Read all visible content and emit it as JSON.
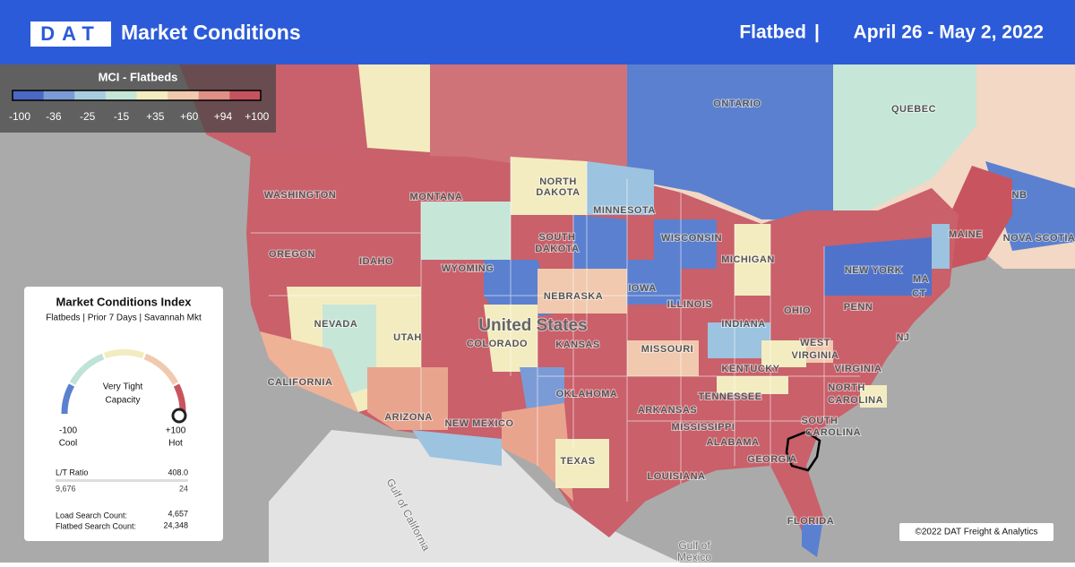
{
  "header": {
    "logo": "DAT",
    "title": "Market Conditions",
    "product": "Flatbed",
    "separator": "|",
    "dates": "April 26 - May 2, 2022"
  },
  "legend": {
    "title": "MCI - Flatbeds",
    "ticks": [
      "-100",
      "-36",
      "-25",
      "-15",
      "+35",
      "+60",
      "+94",
      "+100"
    ],
    "colors": [
      "#4a68c4",
      "#7b9bd6",
      "#a9cde0",
      "#c6e6d8",
      "#f3ecc0",
      "#f1c9ae",
      "#df8f86",
      "#c4535e"
    ]
  },
  "panel": {
    "title": "Market Conditions Index",
    "subtitle": "Flatbeds | Prior 7 Days | Savannah Mkt",
    "gauge_label": [
      "Very Tight",
      "Capacity"
    ],
    "min": "-100",
    "min_label": "Cool",
    "max": "+100",
    "max_label": "Hot",
    "ratio_label": "L/T Ratio",
    "ratio": "408.0",
    "loads": "9,676",
    "trucks": "24",
    "load_search_label": "Load Search Count:",
    "load_search": "4,657",
    "flatbed_search_label": "Flatbed Search Count:",
    "flatbed_search": "24,348"
  },
  "map": {
    "labels": [
      "ONTARIO",
      "QUEBEC",
      "WASHINGTON",
      "MONTANA",
      "NORTH",
      "DAKOTA",
      "MINNESOTA",
      "SOUTH",
      "DAKOTA",
      "WISCONSIN",
      "MICHIGAN",
      "NEW YORK",
      "MAINE",
      "NB",
      "NOVA SCOTIA",
      "OREGON",
      "IDAHO",
      "WYOMING",
      "NEBRASKA",
      "IOWA",
      "ILLINOIS",
      "INDIANA",
      "OHIO",
      "PENN",
      "NJ",
      "CT",
      "MA",
      "NEVADA",
      "UTAH",
      "COLORADO",
      "KANSAS",
      "MISSOURI",
      "KENTUCKY",
      "WEST",
      "VIRGINIA",
      "VIRGINIA",
      "CALIFORNIA",
      "ARIZONA",
      "NEW MEXICO",
      "OKLAHOMA",
      "TENNESSEE",
      "NORTH",
      "CAROLINA",
      "SOUTH",
      "CAROLINA",
      "ARKANSAS",
      "MISSISSIPPI",
      "ALABAMA",
      "GEORGIA",
      "LOUISIANA",
      "TEXAS",
      "FLORIDA",
      "United States",
      "Gulf of",
      "Mexico",
      "Gulf of California"
    ],
    "copyright": "©2022 DAT Freight & Analytics"
  }
}
